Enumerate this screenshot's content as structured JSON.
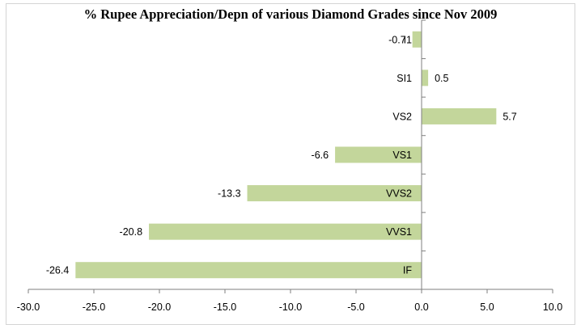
{
  "chart_data": {
    "type": "bar",
    "orientation": "horizontal",
    "title": "% Rupee Appreciation/Depn of various Diamond Grades since Nov 2009",
    "xlabel": "",
    "ylabel": "",
    "categories": [
      "I1",
      "SI1",
      "VS2",
      "VS1",
      "VVS2",
      "VVS1",
      "IF"
    ],
    "values": [
      -0.7,
      0.5,
      5.7,
      -6.6,
      -13.3,
      -20.8,
      -26.4
    ],
    "value_labels": [
      "-0.7",
      "0.5",
      "5.7",
      "-6.6",
      "-13.3",
      "-20.8",
      "-26.4"
    ],
    "xlim": [
      -30.0,
      10.0
    ],
    "xticks": [
      "-30.0",
      "-25.0",
      "-20.0",
      "-15.0",
      "-10.0",
      "-5.0",
      "0.0",
      "5.0",
      "10.0"
    ],
    "bar_color": "#c3d69b",
    "grid": false,
    "legend": "none"
  }
}
